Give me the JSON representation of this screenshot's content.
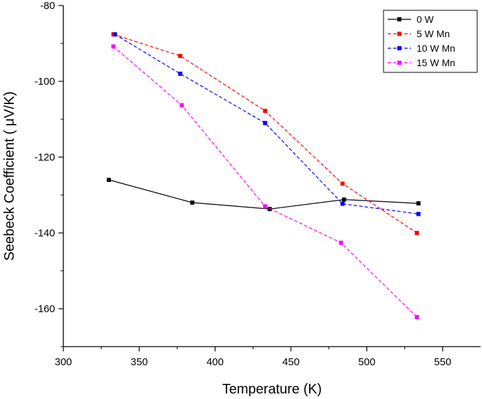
{
  "chart_data": {
    "type": "line",
    "title": "",
    "xlabel": "Temperature (K)",
    "ylabel": "Seebeck Coefficient ( μV/K)",
    "xlim": [
      300,
      575
    ],
    "ylim": [
      -170,
      -80
    ],
    "xticks": [
      300,
      350,
      400,
      450,
      500,
      550
    ],
    "yticks": [
      -160,
      -140,
      -120,
      -100,
      -80
    ],
    "x_tick_labels": [
      "300",
      "350",
      "400",
      "450",
      "500",
      "550"
    ],
    "y_tick_labels": [
      "-160",
      "-140",
      "-120",
      "-100",
      "-80"
    ],
    "grid": false,
    "legend_position": "top-right",
    "series": [
      {
        "name": "0 W",
        "color": "#000000",
        "dash": "solid",
        "x": [
          330,
          385,
          436,
          485,
          534
        ],
        "y": [
          -126,
          -132,
          -133.7,
          -131.2,
          -132.2
        ]
      },
      {
        "name": "5 W Mn",
        "color": "#ff0000",
        "dash": "dashed",
        "x": [
          333,
          377,
          433,
          484,
          533
        ],
        "y": [
          -87.6,
          -93.3,
          -107.8,
          -127,
          -140
        ]
      },
      {
        "name": "10 W Mn",
        "color": "#0000ff",
        "dash": "dashed",
        "x": [
          334,
          377,
          433,
          484,
          534
        ],
        "y": [
          -87.6,
          -98,
          -111,
          -132.3,
          -135
        ]
      },
      {
        "name": "15 W Mn",
        "color": "#ff00ff",
        "dash": "dashed",
        "x": [
          333,
          378,
          433,
          483,
          533
        ],
        "y": [
          -90.8,
          -106.3,
          -133,
          -142.6,
          -162.2
        ]
      }
    ]
  }
}
